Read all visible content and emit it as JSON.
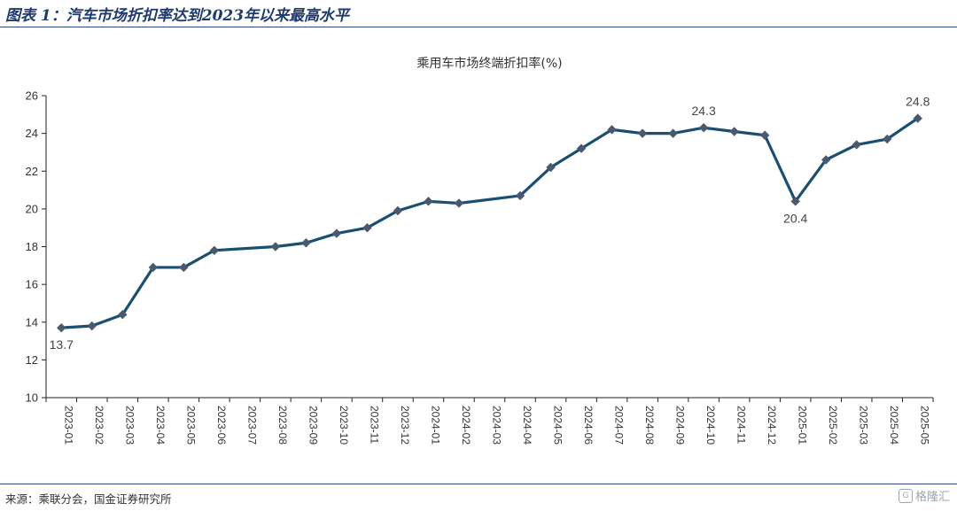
{
  "figure": {
    "title": "图表 1：汽车市场折扣率达到2023年以来最高水平",
    "source": "来源：乘联分会，国金证券研究所",
    "watermark": "格隆汇"
  },
  "chart_data": {
    "type": "line",
    "title": "乘用车市场终端折扣率(%)",
    "xlabel": "",
    "ylabel": "",
    "ylim": [
      10,
      26
    ],
    "yticks": [
      10,
      12,
      14,
      16,
      18,
      20,
      22,
      24,
      26
    ],
    "grid": false,
    "legend": "none",
    "color": "#1b4f72",
    "marker_color": "#4a5870",
    "categories": [
      "2023-01",
      "2023-02",
      "2023-03",
      "2023-04",
      "2023-05",
      "2023-06",
      "2023-07",
      "2023-08",
      "2023-09",
      "2023-10",
      "2023-11",
      "2023-12",
      "2024-01",
      "2024-02",
      "2024-03",
      "2024-04",
      "2024-05",
      "2024-06",
      "2024-07",
      "2024-08",
      "2024-09",
      "2024-10",
      "2024-11",
      "2024-12",
      "2025-01",
      "2025-02",
      "2025-03",
      "2025-04",
      "2025-05"
    ],
    "values": [
      13.7,
      null,
      null,
      16.9,
      16.9,
      17.8,
      null,
      18.0,
      18.2,
      18.7,
      19.0,
      19.9,
      20.4,
      20.3,
      null,
      20.7,
      22.2,
      23.2,
      24.2,
      24.0,
      24.0,
      24.3,
      24.1,
      23.9,
      20.4,
      22.6,
      23.4,
      23.7,
      24.8
    ],
    "points": [
      {
        "x": "2023-01",
        "y": 13.7
      },
      {
        "x": "2023-02",
        "y": 13.8
      },
      {
        "x": "2023-03",
        "y": 14.4
      },
      {
        "x": "2023-04",
        "y": 16.9
      },
      {
        "x": "2023-05",
        "y": 16.9
      },
      {
        "x": "2023-06",
        "y": 17.8
      },
      {
        "x": "2023-08",
        "y": 18.0
      },
      {
        "x": "2023-09",
        "y": 18.2
      },
      {
        "x": "2023-10",
        "y": 18.7
      },
      {
        "x": "2023-11",
        "y": 19.0
      },
      {
        "x": "2023-12",
        "y": 19.9
      },
      {
        "x": "2024-01",
        "y": 20.4
      },
      {
        "x": "2024-02",
        "y": 20.3
      },
      {
        "x": "2024-04",
        "y": 20.7
      },
      {
        "x": "2024-05",
        "y": 22.2
      },
      {
        "x": "2024-06",
        "y": 23.2
      },
      {
        "x": "2024-07",
        "y": 24.2
      },
      {
        "x": "2024-08",
        "y": 24.0
      },
      {
        "x": "2024-09",
        "y": 24.0
      },
      {
        "x": "2024-10",
        "y": 24.3
      },
      {
        "x": "2024-11",
        "y": 24.1
      },
      {
        "x": "2024-12",
        "y": 23.9
      },
      {
        "x": "2025-01",
        "y": 20.4
      },
      {
        "x": "2025-02",
        "y": 22.6
      },
      {
        "x": "2025-03",
        "y": 23.4
      },
      {
        "x": "2025-04",
        "y": 23.7
      },
      {
        "x": "2025-05",
        "y": 24.8
      }
    ],
    "annotations": [
      {
        "x": "2023-01",
        "y": 13.7,
        "text": "13.7",
        "position": "below"
      },
      {
        "x": "2024-10",
        "y": 24.3,
        "text": "24.3",
        "position": "above"
      },
      {
        "x": "2025-01",
        "y": 20.4,
        "text": "20.4",
        "position": "below"
      },
      {
        "x": "2025-05",
        "y": 24.8,
        "text": "24.8",
        "position": "above"
      }
    ]
  }
}
